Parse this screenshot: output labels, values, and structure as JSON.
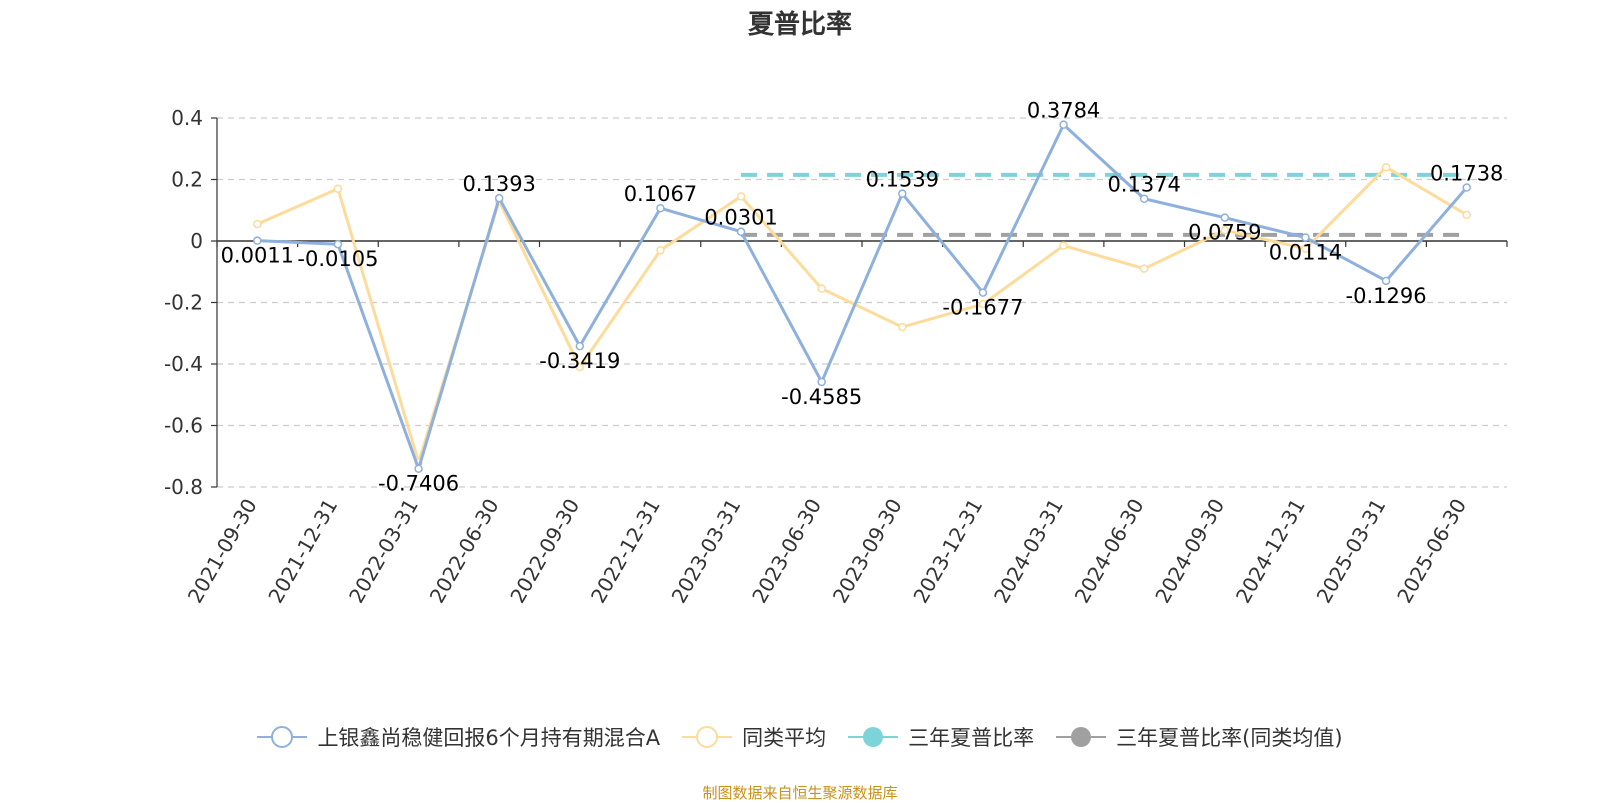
{
  "chart_data": {
    "type": "line",
    "title": "夏普比率",
    "x": [
      "2021-09-30",
      "2021-12-31",
      "2022-03-31",
      "2022-06-30",
      "2022-09-30",
      "2022-12-31",
      "2023-03-31",
      "2023-06-30",
      "2023-09-30",
      "2023-12-31",
      "2024-03-31",
      "2024-06-30",
      "2024-09-30",
      "2024-12-31",
      "2025-03-31",
      "2025-06-30"
    ],
    "ylim": [
      -0.8,
      0.4
    ],
    "yticks": [
      0.4,
      0.2,
      0,
      -0.2,
      -0.4,
      -0.6,
      -0.8
    ],
    "ytick_labels": [
      "0.4",
      "0.2",
      "0",
      "-0.2",
      "-0.4",
      "-0.6",
      "-0.8"
    ],
    "grid": true,
    "legend_position": "bottom",
    "series": [
      {
        "name": "上银鑫尚稳健回报6个月持有期混合A",
        "color": "#8eb0dc",
        "values": [
          0.0011,
          -0.0105,
          -0.7406,
          0.1393,
          -0.3419,
          0.1067,
          0.0301,
          -0.4585,
          0.1539,
          -0.1677,
          0.3784,
          0.1374,
          0.0759,
          0.0114,
          -0.1296,
          0.1738
        ],
        "labels": [
          "0.0011",
          "-0.0105",
          "-0.7406",
          "0.1393",
          "-0.3419",
          "0.1067",
          "0.0301",
          "-0.4585",
          "0.1539",
          "-0.1677",
          "0.3784",
          "0.1374",
          "0.0759",
          "0.0114",
          "-0.1296",
          "0.1738"
        ]
      },
      {
        "name": "同类平均",
        "color": "#fddb9a",
        "values": [
          0.055,
          0.17,
          -0.72,
          0.13,
          -0.41,
          -0.03,
          0.145,
          -0.155,
          -0.28,
          -0.205,
          -0.015,
          -0.09,
          0.035,
          -0.025,
          0.24,
          0.085
        ]
      },
      {
        "name": "三年夏普比率",
        "color": "#7dd3da",
        "dashed": true,
        "x_from": "2023-03-31",
        "x_to": "2025-06-30",
        "value": 0.215
      },
      {
        "name": "三年夏普比率(同类均值)",
        "color": "#a0a0a0",
        "dashed": true,
        "x_from": "2023-03-31",
        "x_to": "2025-06-30",
        "value": 0.02
      }
    ]
  },
  "footer": {
    "source": "制图数据来自恒生聚源数据库"
  }
}
